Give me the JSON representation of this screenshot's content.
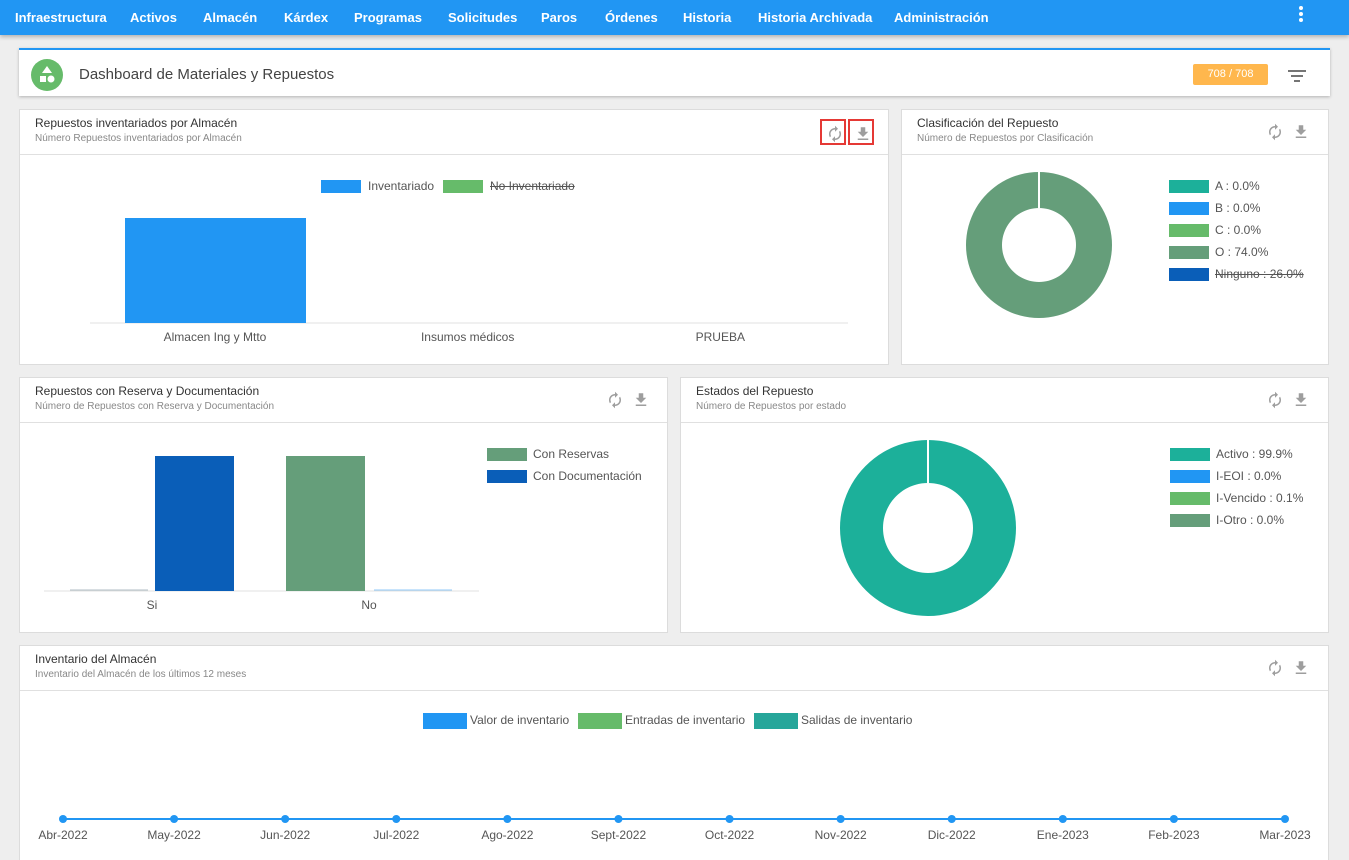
{
  "nav": {
    "items": [
      "Infraestructura",
      "Activos",
      "Almacén",
      "Kárdex",
      "Programas",
      "Solicitudes",
      "Paros",
      "Órdenes",
      "Historia",
      "Historia Archivada",
      "Administración"
    ],
    "menu_icon": "kebab-menu-icon"
  },
  "header": {
    "title": "Dashboard de Materiales y Repuestos",
    "count_badge": "708 / 708",
    "icon": "shapes-icon",
    "filter_icon": "filter-icon"
  },
  "colors": {
    "nav": "#2196f3",
    "blue": "#2196f3",
    "green": "#66bb6a",
    "sage": "#659e7a",
    "dark_blue": "#0a5eb8",
    "teal": "#1cb09a",
    "teal2": "#26a69a",
    "badge": "#ffb74d"
  },
  "panels": {
    "almacen": {
      "title": "Repuestos inventariados por Almacén",
      "subtitle": "Número Repuestos inventariados por Almacén",
      "legend": [
        {
          "label": "Inventariado",
          "color": "#2196f3",
          "hidden": false
        },
        {
          "label": "No Inventariado",
          "color": "#66bb6a",
          "hidden": true
        }
      ]
    },
    "clasificacion": {
      "title": "Clasificación del Repuesto",
      "subtitle": "Número de Repuestos por Clasificación",
      "legend": [
        {
          "label": "A : 0.0%",
          "color": "#1cb09a",
          "hidden": false
        },
        {
          "label": "B : 0.0%",
          "color": "#2196f3",
          "hidden": false
        },
        {
          "label": "C : 0.0%",
          "color": "#66bb6a",
          "hidden": false
        },
        {
          "label": "O : 74.0%",
          "color": "#659e7a",
          "hidden": false
        },
        {
          "label": "Ninguno : 26.0%",
          "color": "#0a5eb8",
          "hidden": true
        }
      ]
    },
    "reserva": {
      "title": "Repuestos con Reserva y Documentación",
      "subtitle": "Número de Repuestos con Reserva y Documentación",
      "legend": [
        {
          "label": "Con Reservas",
          "color": "#659e7a",
          "hidden": false
        },
        {
          "label": "Con Documentación",
          "color": "#0a5eb8",
          "hidden": false
        }
      ]
    },
    "estados": {
      "title": "Estados del Repuesto",
      "subtitle": "Número de Repuestos por estado",
      "legend": [
        {
          "label": "Activo : 99.9%",
          "color": "#1cb09a",
          "hidden": false
        },
        {
          "label": "I-EOI : 0.0%",
          "color": "#2196f3",
          "hidden": false
        },
        {
          "label": "I-Vencido : 0.1%",
          "color": "#66bb6a",
          "hidden": false
        },
        {
          "label": "I-Otro : 0.0%",
          "color": "#659e7a",
          "hidden": false
        }
      ]
    },
    "inventario": {
      "title": "Inventario del Almacén",
      "subtitle": "Inventario del Almacén de los últimos 12 meses",
      "legend": [
        {
          "label": "Valor de inventario",
          "color": "#2196f3",
          "hidden": false
        },
        {
          "label": "Entradas de inventario",
          "color": "#66bb6a",
          "hidden": false
        },
        {
          "label": "Salidas de inventario",
          "color": "#26a69a",
          "hidden": false
        }
      ]
    }
  },
  "tool_icons": [
    "refresh-icon",
    "download-icon"
  ],
  "chart_data": [
    {
      "type": "bar",
      "categories": [
        "Almacen Ing y Mtto",
        "Insumos médicos",
        "PRUEBA"
      ],
      "series": [
        {
          "name": "Inventariado",
          "values": [
            708,
            0,
            0
          ]
        },
        {
          "name": "No Inventariado",
          "values": [
            0,
            0,
            0
          ],
          "hidden": true
        }
      ],
      "ylim": [
        0,
        708
      ],
      "legend_placement": "top-center",
      "grid": false
    },
    {
      "type": "pie",
      "donut": true,
      "slices": [
        {
          "label": "A",
          "value": 0.0
        },
        {
          "label": "B",
          "value": 0.0
        },
        {
          "label": "C",
          "value": 0.0
        },
        {
          "label": "O",
          "value": 74.0
        },
        {
          "label": "Ninguno",
          "value": 26.0,
          "hidden": true
        }
      ],
      "legend_placement": "right"
    },
    {
      "type": "bar",
      "categories": [
        "Si",
        "No"
      ],
      "series": [
        {
          "name": "Con Reservas",
          "values": [
            0,
            708
          ]
        },
        {
          "name": "Con Documentación",
          "values": [
            708,
            0
          ]
        }
      ],
      "ylim": [
        0,
        708
      ],
      "legend_placement": "right",
      "grid": false
    },
    {
      "type": "pie",
      "donut": true,
      "slices": [
        {
          "label": "Activo",
          "value": 99.9
        },
        {
          "label": "I-EOI",
          "value": 0.0
        },
        {
          "label": "I-Vencido",
          "value": 0.1
        },
        {
          "label": "I-Otro",
          "value": 0.0
        }
      ],
      "legend_placement": "right"
    },
    {
      "type": "line",
      "categories": [
        "Abr-2022",
        "May-2022",
        "Jun-2022",
        "Jul-2022",
        "Ago-2022",
        "Sept-2022",
        "Oct-2022",
        "Nov-2022",
        "Dic-2022",
        "Ene-2023",
        "Feb-2023",
        "Mar-2023"
      ],
      "series": [
        {
          "name": "Valor de inventario",
          "values": [
            0,
            0,
            0,
            0,
            0,
            0,
            0,
            0,
            0,
            0,
            0,
            0
          ]
        },
        {
          "name": "Entradas de inventario",
          "values": [
            0,
            0,
            0,
            0,
            0,
            0,
            0,
            0,
            0,
            0,
            0,
            0
          ]
        },
        {
          "name": "Salidas de inventario",
          "values": [
            0,
            0,
            0,
            0,
            0,
            0,
            0,
            0,
            0,
            0,
            0,
            0
          ]
        }
      ],
      "legend_placement": "top-center",
      "grid": false
    }
  ]
}
